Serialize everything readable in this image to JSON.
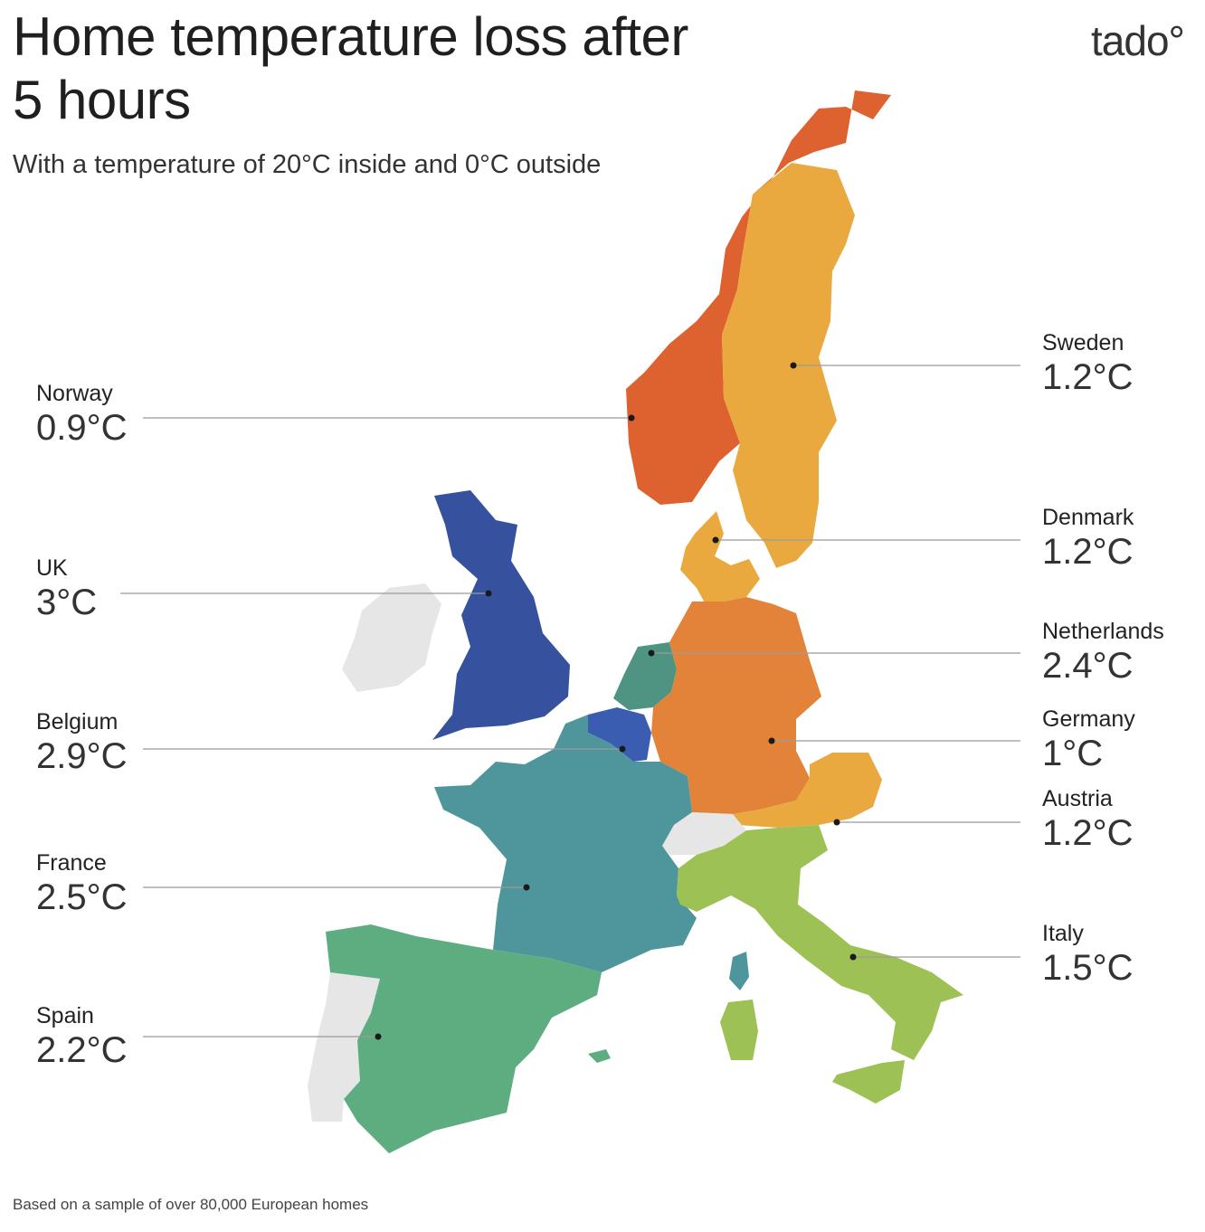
{
  "title": "Home temperature loss after 5 hours",
  "subtitle": "With a temperature of 20°C inside and 0°C outside",
  "brand": "tado°",
  "footnote": "Based on a sample of over 80,000 European homes",
  "colors": {
    "norway": "#de6230",
    "sweden": "#eaa93f",
    "denmark": "#eaa93f",
    "uk": "#36529f",
    "belgium": "#3b5db1",
    "netherlands": "#4f9482",
    "germany": "#e3833a",
    "austria": "#eaa93f",
    "france": "#4f969c",
    "spain": "#5ead80",
    "italy": "#9dc154",
    "corsica": "#4f969c",
    "nodata": "#e6e6e6"
  },
  "countries": [
    {
      "id": "norway",
      "name": "Norway",
      "value": "0.9°C"
    },
    {
      "id": "uk",
      "name": "UK",
      "value": "3°C"
    },
    {
      "id": "belgium",
      "name": "Belgium",
      "value": "2.9°C"
    },
    {
      "id": "france",
      "name": "France",
      "value": "2.5°C"
    },
    {
      "id": "spain",
      "name": "Spain",
      "value": "2.2°C"
    },
    {
      "id": "sweden",
      "name": "Sweden",
      "value": "1.2°C"
    },
    {
      "id": "denmark",
      "name": "Denmark",
      "value": "1.2°C"
    },
    {
      "id": "netherlands",
      "name": "Netherlands",
      "value": "2.4°C"
    },
    {
      "id": "germany",
      "name": "Germany",
      "value": "1°C"
    },
    {
      "id": "austria",
      "name": "Austria",
      "value": "1.2°C"
    },
    {
      "id": "italy",
      "name": "Italy",
      "value": "1.5°C"
    }
  ]
}
